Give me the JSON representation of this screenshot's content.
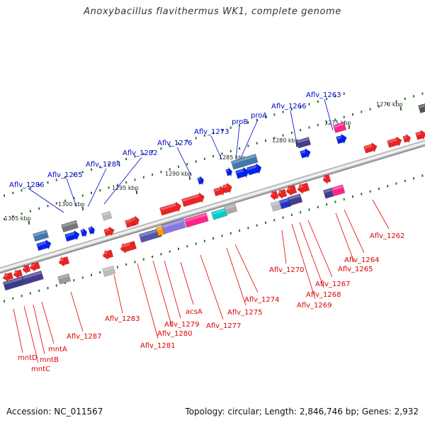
{
  "title": "Anoxybacillus flavithermus WK1, complete genome",
  "footer": {
    "accession": "Accession: NC_011567",
    "summary": "Topology: circular; Length: 2,846,746 bp; Genes: 2,932"
  },
  "colors": {
    "forward_label": "#0000cc",
    "reverse_label": "#dd0000",
    "backbone": "#7a7a7a",
    "tick": "#227722",
    "scale_text": "#222222"
  },
  "scale_ticks": [
    {
      "label": "1305 kbp"
    },
    {
      "label": "1300 kbp"
    },
    {
      "label": "1295 kbp"
    },
    {
      "label": "1290 kbp"
    },
    {
      "label": "1285 kbp"
    },
    {
      "label": "1280 kbp"
    },
    {
      "label": "1275 kbp"
    },
    {
      "label": "1270 kbp"
    }
  ],
  "forward_labels": [
    {
      "text": "Aflv_1286"
    },
    {
      "text": "Aflv_1285"
    },
    {
      "text": "Aflv_1284"
    },
    {
      "text": "Aflv_1282"
    },
    {
      "text": "Aflv_1276"
    },
    {
      "text": "Aflv_1273"
    },
    {
      "text": "proB"
    },
    {
      "text": "proA"
    },
    {
      "text": "Aflv_1266"
    },
    {
      "text": "Aflv_1263"
    }
  ],
  "reverse_labels": [
    {
      "text": "mntD"
    },
    {
      "text": "mntC"
    },
    {
      "text": "mntB"
    },
    {
      "text": "mntA"
    },
    {
      "text": "Aflv_1287"
    },
    {
      "text": "Aflv_1283"
    },
    {
      "text": "Aflv_1281"
    },
    {
      "text": "Aflv_1280"
    },
    {
      "text": "Aflv_1279"
    },
    {
      "text": "acsA"
    },
    {
      "text": "Aflv_1277"
    },
    {
      "text": "Aflv_1275"
    },
    {
      "text": "Aflv_1274"
    },
    {
      "text": "Aflv_1270"
    },
    {
      "text": "Aflv_1269"
    },
    {
      "text": "Aflv_1268"
    },
    {
      "text": "Aflv_1267"
    },
    {
      "text": "Aflv_1265"
    },
    {
      "text": "Aflv_1264"
    },
    {
      "text": "Aflv_1262"
    }
  ]
}
